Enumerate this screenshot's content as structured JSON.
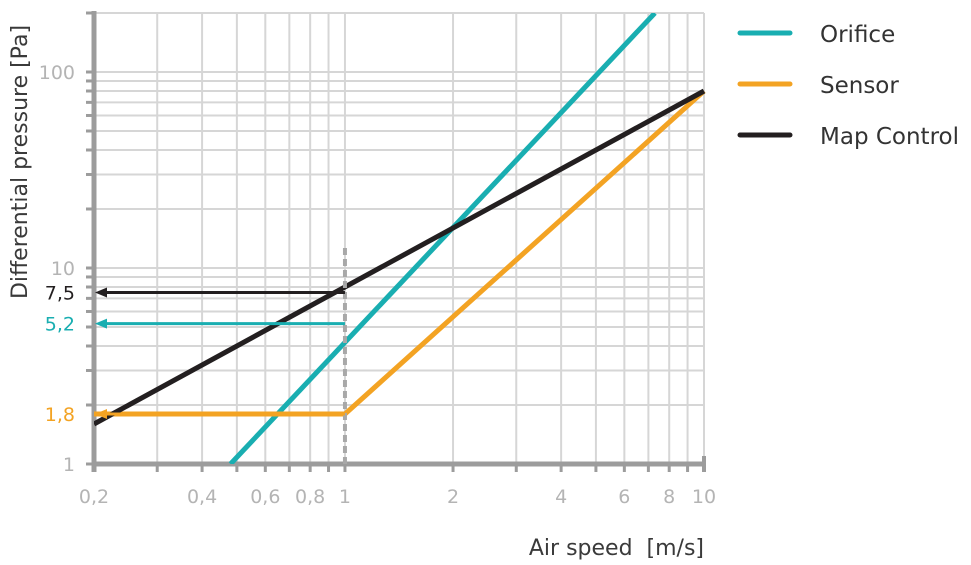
{
  "chart_data": {
    "type": "line",
    "title": "",
    "xlabel": "Air speed  [m/s]",
    "ylabel": "Differential pressure [Pa]",
    "x_scale": "log",
    "y_scale": "log",
    "xlim": [
      0.2,
      10
    ],
    "ylim": [
      1,
      200
    ],
    "grid": true,
    "legend_position": "right",
    "x_tick_labels": [
      {
        "value": 0.2,
        "label": "0,2"
      },
      {
        "value": 0.4,
        "label": "0,4"
      },
      {
        "value": 0.6,
        "label": "0,6"
      },
      {
        "value": 0.8,
        "label": "0,8"
      },
      {
        "value": 1,
        "label": "1"
      },
      {
        "value": 2,
        "label": "2"
      },
      {
        "value": 4,
        "label": "4"
      },
      {
        "value": 6,
        "label": "6"
      },
      {
        "value": 8,
        "label": "8"
      },
      {
        "value": 10,
        "label": "10"
      }
    ],
    "y_tick_labels": [
      {
        "value": 1,
        "label": "1"
      },
      {
        "value": 10,
        "label": "10"
      },
      {
        "value": 100,
        "label": "100"
      }
    ],
    "series": [
      {
        "name": "Orifice",
        "color": "#19aeb1",
        "x": [
          0.48,
          7.3
        ],
        "y": [
          1,
          200
        ]
      },
      {
        "name": "Sensor",
        "color": "#f3a323",
        "x": [
          0.2,
          1,
          10
        ],
        "y": [
          1.8,
          1.8,
          80
        ]
      },
      {
        "name": "Map Control",
        "color": "#231f20",
        "x": [
          0.2,
          10
        ],
        "y": [
          1.6,
          80
        ]
      }
    ],
    "annotations": {
      "reference_x": 1,
      "readouts": [
        {
          "label": "7,5",
          "value": 7.5,
          "color": "#231f20"
        },
        {
          "label": "5,2",
          "value": 5.2,
          "color": "#19aeb1"
        },
        {
          "label": "1,8",
          "value": 1.8,
          "color": "#f3a323"
        }
      ]
    },
    "colors": {
      "grid": "#d6d6d6",
      "axis": "#9c9c9c",
      "tick_label": "#b4b4b4",
      "reference_line": "#a8a8a8"
    }
  }
}
